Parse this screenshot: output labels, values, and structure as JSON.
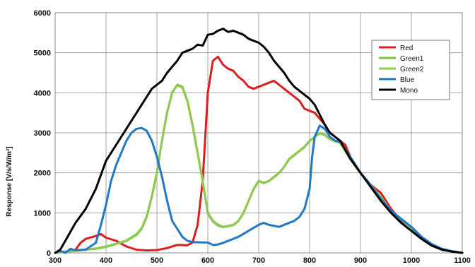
{
  "chart_data": {
    "type": "line",
    "title": "",
    "xlabel": "",
    "ylabel": "Response [V/s/W/m²]",
    "xlim": [
      300,
      1100
    ],
    "ylim": [
      0,
      6000
    ],
    "xticks": [
      300,
      400,
      500,
      600,
      700,
      800,
      900,
      1000,
      1100
    ],
    "yticks": [
      0,
      1000,
      2000,
      3000,
      4000,
      5000,
      6000
    ],
    "grid": true,
    "legend_position": "top-right",
    "series": [
      {
        "name": "Red",
        "color": "#dd1e1e",
        "points": [
          [
            300,
            0
          ],
          [
            320,
            30
          ],
          [
            340,
            80
          ],
          [
            350,
            250
          ],
          [
            360,
            350
          ],
          [
            380,
            420
          ],
          [
            390,
            470
          ],
          [
            400,
            380
          ],
          [
            420,
            300
          ],
          [
            440,
            160
          ],
          [
            460,
            80
          ],
          [
            480,
            60
          ],
          [
            500,
            70
          ],
          [
            520,
            120
          ],
          [
            540,
            200
          ],
          [
            560,
            190
          ],
          [
            570,
            260
          ],
          [
            580,
            700
          ],
          [
            590,
            1800
          ],
          [
            600,
            4000
          ],
          [
            610,
            4800
          ],
          [
            620,
            4900
          ],
          [
            630,
            4700
          ],
          [
            640,
            4600
          ],
          [
            650,
            4550
          ],
          [
            660,
            4400
          ],
          [
            670,
            4300
          ],
          [
            680,
            4150
          ],
          [
            690,
            4100
          ],
          [
            700,
            4150
          ],
          [
            710,
            4200
          ],
          [
            720,
            4250
          ],
          [
            730,
            4300
          ],
          [
            740,
            4200
          ],
          [
            750,
            4100
          ],
          [
            760,
            4000
          ],
          [
            770,
            3900
          ],
          [
            780,
            3800
          ],
          [
            790,
            3600
          ],
          [
            800,
            3550
          ],
          [
            810,
            3500
          ],
          [
            820,
            3350
          ],
          [
            830,
            3200
          ],
          [
            840,
            3000
          ],
          [
            850,
            2900
          ],
          [
            860,
            2800
          ],
          [
            870,
            2700
          ],
          [
            880,
            2400
          ],
          [
            900,
            2000
          ],
          [
            920,
            1700
          ],
          [
            940,
            1500
          ],
          [
            960,
            1100
          ],
          [
            980,
            800
          ],
          [
            1000,
            650
          ],
          [
            1020,
            400
          ],
          [
            1040,
            200
          ],
          [
            1060,
            100
          ],
          [
            1080,
            40
          ],
          [
            1100,
            0
          ]
        ]
      },
      {
        "name": "Green1",
        "color": "#7bbf3a",
        "points": [
          [
            300,
            0
          ],
          [
            330,
            40
          ],
          [
            360,
            80
          ],
          [
            380,
            100
          ],
          [
            400,
            150
          ],
          [
            420,
            220
          ],
          [
            440,
            300
          ],
          [
            460,
            450
          ],
          [
            470,
            600
          ],
          [
            480,
            900
          ],
          [
            490,
            1400
          ],
          [
            500,
            2000
          ],
          [
            510,
            2800
          ],
          [
            520,
            3500
          ],
          [
            530,
            4000
          ],
          [
            540,
            4200
          ],
          [
            550,
            4150
          ],
          [
            560,
            3800
          ],
          [
            570,
            3200
          ],
          [
            580,
            2500
          ],
          [
            590,
            1800
          ],
          [
            600,
            1000
          ],
          [
            610,
            800
          ],
          [
            620,
            700
          ],
          [
            630,
            650
          ],
          [
            650,
            700
          ],
          [
            660,
            800
          ],
          [
            670,
            1000
          ],
          [
            680,
            1300
          ],
          [
            690,
            1600
          ],
          [
            700,
            1800
          ],
          [
            710,
            1750
          ],
          [
            720,
            1800
          ],
          [
            730,
            1900
          ],
          [
            740,
            2000
          ],
          [
            750,
            2150
          ],
          [
            760,
            2350
          ],
          [
            770,
            2450
          ],
          [
            780,
            2550
          ],
          [
            790,
            2650
          ],
          [
            800,
            2800
          ],
          [
            810,
            2900
          ],
          [
            820,
            3000
          ],
          [
            830,
            2950
          ],
          [
            840,
            2850
          ],
          [
            850,
            2800
          ],
          [
            860,
            2750
          ],
          [
            880,
            2350
          ],
          [
            900,
            2000
          ],
          [
            920,
            1700
          ],
          [
            940,
            1400
          ],
          [
            960,
            1050
          ],
          [
            980,
            850
          ],
          [
            1000,
            620
          ],
          [
            1020,
            380
          ],
          [
            1040,
            200
          ],
          [
            1060,
            100
          ],
          [
            1080,
            40
          ],
          [
            1100,
            0
          ]
        ]
      },
      {
        "name": "Green2",
        "color": "#92c950",
        "points": [
          [
            300,
            0
          ],
          [
            330,
            50
          ],
          [
            360,
            90
          ],
          [
            380,
            110
          ],
          [
            400,
            160
          ],
          [
            420,
            230
          ],
          [
            440,
            310
          ],
          [
            460,
            470
          ],
          [
            470,
            620
          ],
          [
            480,
            920
          ],
          [
            490,
            1420
          ],
          [
            500,
            2020
          ],
          [
            510,
            2820
          ],
          [
            520,
            3520
          ],
          [
            530,
            4020
          ],
          [
            540,
            4180
          ],
          [
            550,
            4130
          ],
          [
            560,
            3780
          ],
          [
            570,
            3180
          ],
          [
            580,
            2480
          ],
          [
            590,
            1780
          ],
          [
            600,
            980
          ],
          [
            610,
            780
          ],
          [
            620,
            680
          ],
          [
            630,
            640
          ],
          [
            650,
            690
          ],
          [
            660,
            790
          ],
          [
            670,
            990
          ],
          [
            680,
            1290
          ],
          [
            690,
            1590
          ],
          [
            700,
            1790
          ],
          [
            710,
            1740
          ],
          [
            720,
            1790
          ],
          [
            730,
            1890
          ],
          [
            740,
            1990
          ],
          [
            750,
            2140
          ],
          [
            760,
            2340
          ],
          [
            770,
            2440
          ],
          [
            780,
            2540
          ],
          [
            790,
            2640
          ],
          [
            800,
            2790
          ],
          [
            810,
            2890
          ],
          [
            820,
            2990
          ],
          [
            830,
            2940
          ],
          [
            840,
            2840
          ],
          [
            850,
            2790
          ],
          [
            860,
            2740
          ],
          [
            880,
            2340
          ],
          [
            900,
            1990
          ],
          [
            920,
            1690
          ],
          [
            940,
            1390
          ],
          [
            960,
            1040
          ],
          [
            980,
            840
          ],
          [
            1000,
            610
          ],
          [
            1020,
            370
          ],
          [
            1040,
            190
          ],
          [
            1060,
            90
          ],
          [
            1080,
            35
          ],
          [
            1100,
            0
          ]
        ]
      },
      {
        "name": "Blue",
        "color": "#1f78c8",
        "points": [
          [
            300,
            0
          ],
          [
            310,
            50
          ],
          [
            320,
            0
          ],
          [
            330,
            100
          ],
          [
            340,
            60
          ],
          [
            360,
            80
          ],
          [
            380,
            250
          ],
          [
            390,
            700
          ],
          [
            400,
            1200
          ],
          [
            410,
            1800
          ],
          [
            420,
            2200
          ],
          [
            430,
            2500
          ],
          [
            440,
            2800
          ],
          [
            450,
            3000
          ],
          [
            460,
            3100
          ],
          [
            470,
            3120
          ],
          [
            480,
            3050
          ],
          [
            490,
            2800
          ],
          [
            500,
            2400
          ],
          [
            510,
            1900
          ],
          [
            520,
            1300
          ],
          [
            530,
            800
          ],
          [
            540,
            600
          ],
          [
            550,
            400
          ],
          [
            560,
            300
          ],
          [
            570,
            270
          ],
          [
            590,
            260
          ],
          [
            600,
            260
          ],
          [
            610,
            200
          ],
          [
            620,
            210
          ],
          [
            630,
            250
          ],
          [
            640,
            300
          ],
          [
            660,
            400
          ],
          [
            680,
            550
          ],
          [
            700,
            700
          ],
          [
            710,
            750
          ],
          [
            720,
            700
          ],
          [
            740,
            650
          ],
          [
            750,
            700
          ],
          [
            770,
            800
          ],
          [
            780,
            900
          ],
          [
            790,
            1100
          ],
          [
            800,
            1600
          ],
          [
            805,
            2400
          ],
          [
            810,
            2900
          ],
          [
            820,
            3180
          ],
          [
            830,
            3100
          ],
          [
            840,
            2900
          ],
          [
            850,
            2800
          ],
          [
            860,
            2780
          ],
          [
            880,
            2400
          ],
          [
            900,
            2000
          ],
          [
            920,
            1700
          ],
          [
            940,
            1350
          ],
          [
            960,
            1050
          ],
          [
            980,
            850
          ],
          [
            1000,
            650
          ],
          [
            1020,
            400
          ],
          [
            1040,
            220
          ],
          [
            1060,
            100
          ],
          [
            1080,
            40
          ],
          [
            1100,
            0
          ]
        ]
      },
      {
        "name": "Mono",
        "color": "#000000",
        "points": [
          [
            300,
            0
          ],
          [
            310,
            80
          ],
          [
            320,
            300
          ],
          [
            340,
            750
          ],
          [
            360,
            1100
          ],
          [
            380,
            1600
          ],
          [
            400,
            2300
          ],
          [
            420,
            2700
          ],
          [
            440,
            3100
          ],
          [
            460,
            3500
          ],
          [
            470,
            3700
          ],
          [
            480,
            3900
          ],
          [
            490,
            4100
          ],
          [
            500,
            4200
          ],
          [
            510,
            4300
          ],
          [
            520,
            4500
          ],
          [
            530,
            4650
          ],
          [
            540,
            4800
          ],
          [
            550,
            5000
          ],
          [
            560,
            5050
          ],
          [
            570,
            5100
          ],
          [
            580,
            5200
          ],
          [
            590,
            5180
          ],
          [
            600,
            5450
          ],
          [
            610,
            5470
          ],
          [
            620,
            5550
          ],
          [
            630,
            5600
          ],
          [
            640,
            5520
          ],
          [
            650,
            5550
          ],
          [
            660,
            5500
          ],
          [
            670,
            5450
          ],
          [
            680,
            5350
          ],
          [
            690,
            5300
          ],
          [
            700,
            5250
          ],
          [
            710,
            5150
          ],
          [
            720,
            5000
          ],
          [
            730,
            4800
          ],
          [
            740,
            4650
          ],
          [
            750,
            4500
          ],
          [
            760,
            4300
          ],
          [
            770,
            4150
          ],
          [
            780,
            4050
          ],
          [
            790,
            3950
          ],
          [
            800,
            3850
          ],
          [
            810,
            3700
          ],
          [
            820,
            3450
          ],
          [
            830,
            3200
          ],
          [
            840,
            3000
          ],
          [
            850,
            2900
          ],
          [
            860,
            2800
          ],
          [
            880,
            2350
          ],
          [
            900,
            2000
          ],
          [
            920,
            1650
          ],
          [
            940,
            1300
          ],
          [
            960,
            1000
          ],
          [
            980,
            750
          ],
          [
            1000,
            550
          ],
          [
            1020,
            350
          ],
          [
            1040,
            180
          ],
          [
            1060,
            80
          ],
          [
            1080,
            30
          ],
          [
            1100,
            0
          ]
        ]
      }
    ]
  }
}
